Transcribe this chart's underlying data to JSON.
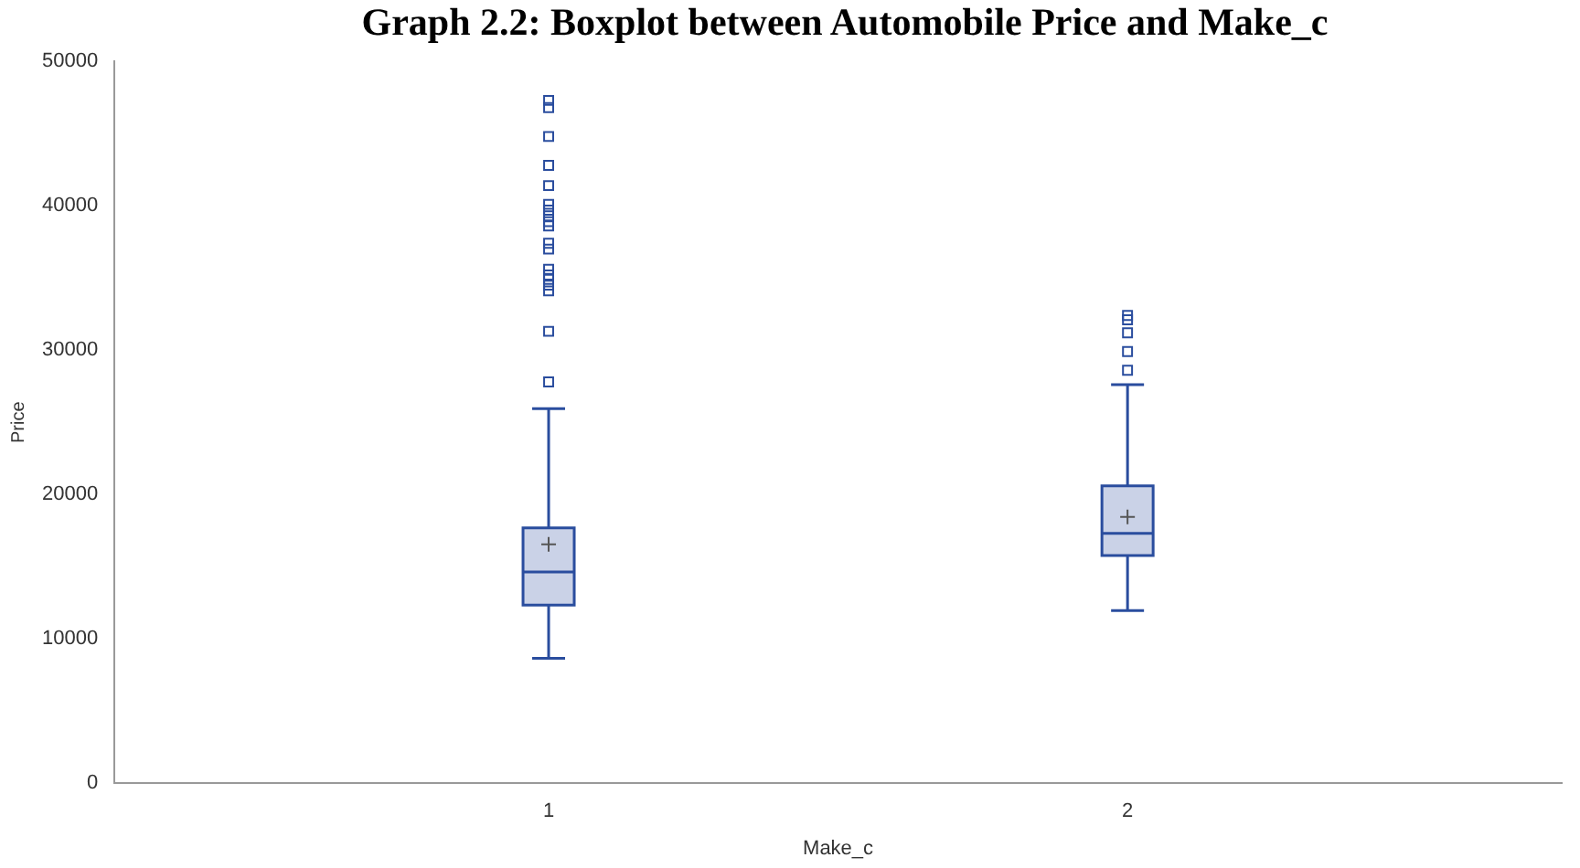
{
  "chart_data": {
    "type": "box",
    "title": "Graph 2.2: Boxplot between Automobile Price and Make_c",
    "xlabel": "Make_c",
    "ylabel": "Price",
    "categories": [
      "1",
      "2"
    ],
    "boxes": [
      {
        "low": 8650,
        "q1": 12340,
        "median": 14630,
        "q3": 17680,
        "high": 25950,
        "mean": 16540,
        "outliers": [
          27800,
          31300,
          34100,
          34500,
          34900,
          35200,
          35600,
          37000,
          37400,
          38600,
          38900,
          39300,
          39700,
          40100,
          41400,
          42800,
          44800,
          46800,
          47300
        ]
      },
      {
        "low": 11960,
        "q1": 15770,
        "median": 17300,
        "q3": 20600,
        "high": 27600,
        "mean": 18440,
        "outliers": [
          28600,
          29900,
          31200,
          32100,
          32400
        ]
      }
    ],
    "color": "#2a4d9e",
    "marker": "square",
    "ylim": [
      0,
      50000
    ],
    "yticks": [
      0,
      10000,
      20000,
      30000,
      40000,
      50000
    ],
    "grid": false,
    "legend": false
  }
}
